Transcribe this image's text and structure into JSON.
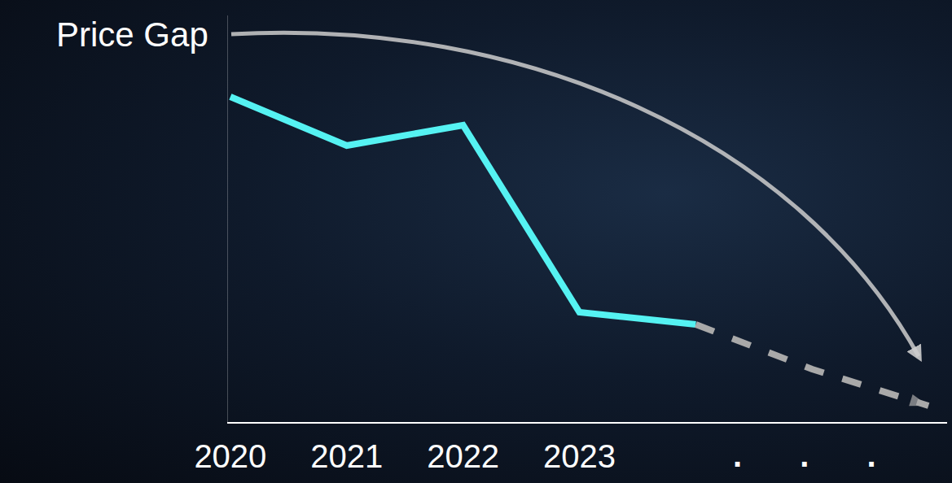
{
  "chart_data": {
    "type": "line",
    "categories": [
      "2020",
      "2021",
      "2022",
      "2023",
      null,
      null,
      null
    ],
    "series": [
      {
        "values": [
          80,
          68,
          73,
          27,
          24,
          null,
          null
        ],
        "color": "#55f2f2",
        "line_style": "solid"
      },
      {
        "values": [
          null,
          null,
          null,
          null,
          24,
          13,
          4
        ],
        "color": "#a9a9a9",
        "line_style": "dash",
        "marker": "arrow"
      }
    ],
    "annotations": [
      {
        "text": "Price Gap"
      },
      {
        "text": ". . ."
      }
    ],
    "ylim": [
      0,
      100
    ],
    "yticks": [],
    "grid": false,
    "tick_labels": "x"
  }
}
